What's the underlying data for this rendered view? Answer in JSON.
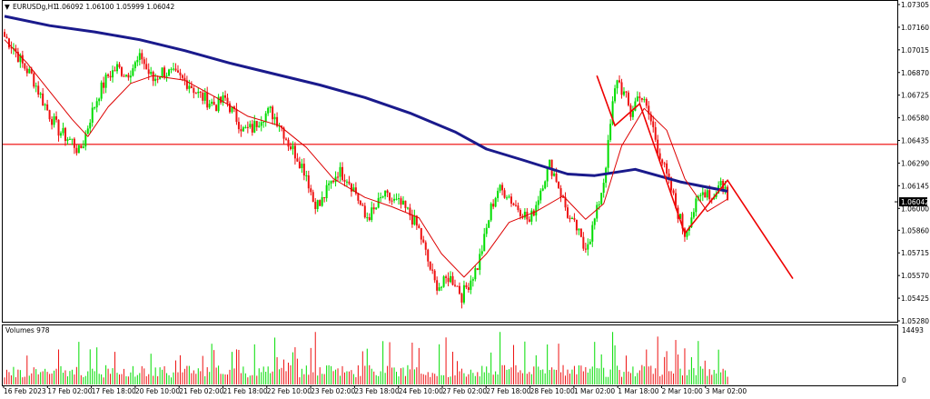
{
  "header": {
    "symbol_timeframe": "EURUSDg,H1",
    "ohlc": "1.06092 1.06100 1.05999 1.06042"
  },
  "volume_panel": {
    "title": "Volumes 978",
    "max_label": "14493",
    "zero_label": "0"
  },
  "current_price_label": "1.06042",
  "colors": {
    "bull": "#00dd00",
    "bear": "#ee1111",
    "ma_long": "#1a1a8c",
    "ma_short": "#dd0000",
    "hline": "#ee0000",
    "price_tag_bg": "#000000"
  },
  "chart_data": [
    {
      "type": "candlestick",
      "title": "EURUSDg,H1",
      "y_tick_labels": [
        "1.07305",
        "1.07160",
        "1.07015",
        "1.06870",
        "1.06725",
        "1.06580",
        "1.06435",
        "1.06290",
        "1.06145",
        "1.06000",
        "1.05860",
        "1.05715",
        "1.05570",
        "1.05425",
        "1.05280"
      ],
      "ylim": [
        1.0528,
        1.07305
      ],
      "x_tick_labels": [
        "16 Feb 2023",
        "17 Feb 02:00",
        "17 Feb 18:00",
        "20 Feb 10:00",
        "21 Feb 02:00",
        "21 Feb 18:00",
        "22 Feb 10:00",
        "23 Feb 02:00",
        "23 Feb 18:00",
        "24 Feb 10:00",
        "27 Feb 02:00",
        "27 Feb 18:00",
        "28 Feb 10:00",
        "1 Mar 02:00",
        "1 Mar 18:00",
        "2 Mar 10:00",
        "3 Mar 02:00"
      ],
      "current_price": 1.06042,
      "horizontal_line": 1.0641,
      "close_path": [
        [
          0,
          1.071
        ],
        [
          4,
          1.0703
        ],
        [
          8,
          1.0692
        ],
        [
          12,
          1.0685
        ],
        [
          16,
          1.0672
        ],
        [
          20,
          1.066
        ],
        [
          24,
          1.065
        ],
        [
          27,
          1.0646
        ],
        [
          30,
          1.0643
        ],
        [
          33,
          1.0636
        ],
        [
          35,
          1.0642
        ],
        [
          38,
          1.0658
        ],
        [
          42,
          1.0674
        ],
        [
          46,
          1.0685
        ],
        [
          50,
          1.069
        ],
        [
          54,
          1.0686
        ],
        [
          58,
          1.0692
        ],
        [
          61,
          1.0697
        ],
        [
          63,
          1.0689
        ],
        [
          66,
          1.0682
        ],
        [
          70,
          1.0688
        ],
        [
          74,
          1.0686
        ],
        [
          78,
          1.0683
        ],
        [
          82,
          1.068
        ],
        [
          86,
          1.0673
        ],
        [
          90,
          1.0669
        ],
        [
          94,
          1.0666
        ],
        [
          98,
          1.067
        ],
        [
          102,
          1.066
        ],
        [
          106,
          1.065
        ],
        [
          110,
          1.0651
        ],
        [
          114,
          1.0659
        ],
        [
          118,
          1.0662
        ],
        [
          122,
          1.0655
        ],
        [
          126,
          1.0642
        ],
        [
          130,
          1.0633
        ],
        [
          134,
          1.0622
        ],
        [
          137,
          1.0605
        ],
        [
          140,
          1.0602
        ],
        [
          144,
          1.0614
        ],
        [
          148,
          1.0624
        ],
        [
          152,
          1.062
        ],
        [
          156,
          1.061
        ],
        [
          160,
          1.0594
        ],
        [
          164,
          1.0598
        ],
        [
          168,
          1.0608
        ],
        [
          172,
          1.0605
        ],
        [
          176,
          1.0602
        ],
        [
          180,
          1.0596
        ],
        [
          184,
          1.0586
        ],
        [
          188,
          1.0566
        ],
        [
          191,
          1.0552
        ],
        [
          194,
          1.055
        ],
        [
          197,
          1.0556
        ],
        [
          200,
          1.0553
        ],
        [
          203,
          1.0544
        ],
        [
          206,
          1.0552
        ],
        [
          210,
          1.0563
        ],
        [
          213,
          1.058
        ],
        [
          216,
          1.06
        ],
        [
          219,
          1.0612
        ],
        [
          223,
          1.061
        ],
        [
          226,
          1.0603
        ],
        [
          230,
          1.0598
        ],
        [
          233,
          1.0591
        ],
        [
          236,
          1.0603
        ],
        [
          239,
          1.0617
        ],
        [
          242,
          1.0628
        ],
        [
          245,
          1.0619
        ],
        [
          248,
          1.0605
        ],
        [
          251,
          1.0592
        ],
        [
          254,
          1.0587
        ],
        [
          257,
          1.0575
        ],
        [
          260,
          1.0582
        ],
        [
          263,
          1.0598
        ],
        [
          266,
          1.0618
        ],
        [
          268,
          1.064
        ],
        [
          270,
          1.0666
        ],
        [
          272,
          1.0684
        ],
        [
          274,
          1.0676
        ],
        [
          276,
          1.067
        ],
        [
          278,
          1.066
        ],
        [
          280,
          1.0668
        ],
        [
          282,
          1.0674
        ],
        [
          284,
          1.0667
        ],
        [
          286,
          1.066
        ],
        [
          288,
          1.0651
        ],
        [
          290,
          1.0639
        ],
        [
          292,
          1.063
        ],
        [
          294,
          1.062
        ],
        [
          296,
          1.0612
        ],
        [
          298,
          1.0601
        ],
        [
          300,
          1.0593
        ],
        [
          302,
          1.0584
        ],
        [
          304,
          1.0592
        ],
        [
          306,
          1.0599
        ],
        [
          308,
          1.0605
        ],
        [
          310,
          1.061
        ],
        [
          312,
          1.0612
        ],
        [
          314,
          1.0606
        ],
        [
          316,
          1.0612
        ],
        [
          318,
          1.0617
        ],
        [
          320,
          1.0613
        ],
        [
          321,
          1.0604
        ]
      ],
      "overlays": [
        {
          "kind": "moving_average",
          "style": "thick",
          "color": "#1a1a8c",
          "points": [
            [
              0,
              1.0723
            ],
            [
              20,
              1.0717
            ],
            [
              40,
              1.0713
            ],
            [
              60,
              1.0708
            ],
            [
              80,
              1.0701
            ],
            [
              100,
              1.0693
            ],
            [
              120,
              1.0686
            ],
            [
              140,
              1.0679
            ],
            [
              160,
              1.0671
            ],
            [
              180,
              1.0661
            ],
            [
              200,
              1.0649
            ],
            [
              214,
              1.0638
            ],
            [
              230,
              1.0631
            ],
            [
              250,
              1.0622
            ],
            [
              262,
              1.0621
            ],
            [
              280,
              1.0625
            ],
            [
              300,
              1.0617
            ],
            [
              321,
              1.0611
            ]
          ]
        },
        {
          "kind": "moving_average",
          "style": "thin",
          "color": "#dd0000",
          "points": [
            [
              0,
              1.0708
            ],
            [
              10,
              1.0693
            ],
            [
              20,
              1.0675
            ],
            [
              30,
              1.0657
            ],
            [
              37,
              1.0646
            ],
            [
              46,
              1.0665
            ],
            [
              56,
              1.068
            ],
            [
              66,
              1.0685
            ],
            [
              80,
              1.0682
            ],
            [
              94,
              1.0671
            ],
            [
              108,
              1.0659
            ],
            [
              122,
              1.0653
            ],
            [
              134,
              1.0639
            ],
            [
              146,
              1.0619
            ],
            [
              160,
              1.0607
            ],
            [
              172,
              1.0601
            ],
            [
              184,
              1.0594
            ],
            [
              194,
              1.0571
            ],
            [
              204,
              1.0556
            ],
            [
              214,
              1.0571
            ],
            [
              224,
              1.0591
            ],
            [
              236,
              1.0598
            ],
            [
              248,
              1.0608
            ],
            [
              258,
              1.0593
            ],
            [
              266,
              1.0603
            ],
            [
              274,
              1.064
            ],
            [
              284,
              1.0664
            ],
            [
              294,
              1.065
            ],
            [
              302,
              1.0619
            ],
            [
              312,
              1.0598
            ],
            [
              321,
              1.0606
            ]
          ]
        }
      ],
      "trendlines": [
        {
          "color": "#ee0000",
          "points": [
            [
              263,
              1.0685
            ],
            [
              271,
              1.0653
            ],
            [
              282,
              1.0667
            ],
            [
              302,
              1.0584
            ],
            [
              321,
              1.0618
            ],
            [
              350,
              1.0555
            ]
          ]
        }
      ]
    },
    {
      "type": "bar",
      "title": "Volumes 978",
      "y_tick_labels": [
        "14493",
        "0"
      ],
      "ylim": [
        0,
        14493
      ],
      "note": "tick volume histogram, green on up bars, red on down bars"
    }
  ]
}
